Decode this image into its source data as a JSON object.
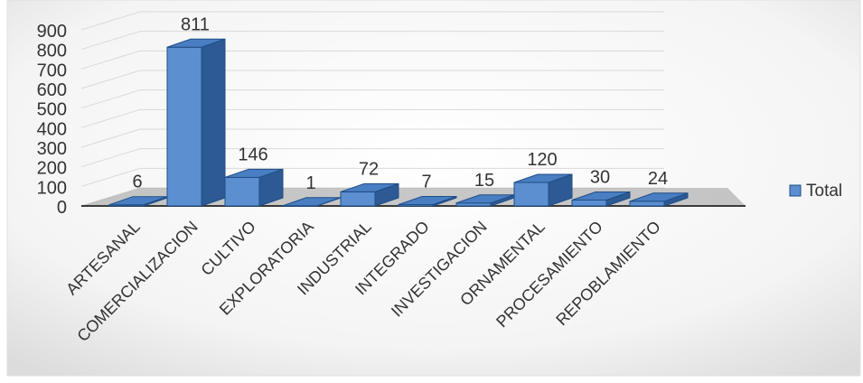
{
  "chart_data": {
    "type": "bar",
    "title": "",
    "xlabel": "",
    "ylabel": "",
    "ylim": [
      0,
      900
    ],
    "yticks": [
      0,
      100,
      200,
      300,
      400,
      500,
      600,
      700,
      800,
      900
    ],
    "categories": [
      "ARTESANAL",
      "COMERCIALIZACION",
      "CULTIVO",
      "EXPLORATORIA",
      "INDUSTRIAL",
      "INTEGRADO",
      "INVESTIGACION",
      "ORNAMENTAL",
      "PROCESAMIENTO",
      "REPOBLAMIENTO"
    ],
    "series": [
      {
        "name": "Total",
        "values": [
          6,
          811,
          146,
          1,
          72,
          7,
          15,
          120,
          30,
          24
        ]
      }
    ],
    "data_labels": [
      "6",
      "811",
      "146",
      "1",
      "72",
      "7",
      "15",
      "120",
      "30",
      "24"
    ],
    "legend_position": "right",
    "grid": true,
    "style": "3d-column",
    "colors": {
      "bar_front": "#5B8FD0",
      "bar_side": "#2D5A94",
      "bar_top": "#4A7EC2",
      "bar_edge": "#1F4E86",
      "floor": "#9A9A9A",
      "grid": "#D9D9D9",
      "text": "#333333"
    }
  }
}
